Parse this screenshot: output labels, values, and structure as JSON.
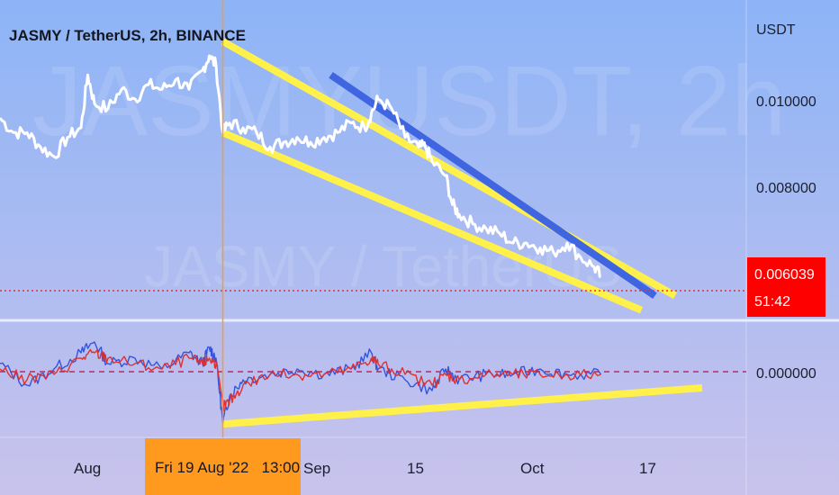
{
  "header": {
    "title": "JASMY / TetherUS, 2h, BINANCE"
  },
  "watermark": {
    "symbol": "JASMYUSDT, 2h",
    "name": "JASMY / TetherUS"
  },
  "price_axis": {
    "currency": "USDT",
    "ticks": [
      "0.010000",
      "0.008000"
    ]
  },
  "last_price": {
    "value": "0.006039",
    "countdown": "51:42",
    "color": "#ff0000"
  },
  "oscillator_axis": {
    "ticks": [
      "0.000000"
    ]
  },
  "time_axis": {
    "ticks": [
      "Aug",
      "Sep",
      "15",
      "Oct",
      "17"
    ],
    "crosshair_label": "Fri 19 Aug '22   13:00"
  },
  "colors": {
    "background_top": "#8db4f7",
    "background_bottom": "#c9c3ec",
    "price_line": "#ffffff",
    "trendline": "#fff04a",
    "blue_trendline": "#3f66e0",
    "crosshair": "#ff9a1f",
    "osc_fast": "#3355dd",
    "osc_slow": "#e03030"
  },
  "chart_data": [
    {
      "type": "line",
      "title": "JASMY / TetherUS, 2h, BINANCE",
      "ylabel": "USDT",
      "ylim": [
        0.0054,
        0.0114
      ],
      "x_index_range": [
        0,
        100
      ],
      "x_ticks": [
        {
          "label": "Aug",
          "x": 14
        },
        {
          "label": "Sep",
          "x": 47
        },
        {
          "label": "15",
          "x": 62
        },
        {
          "label": "Oct",
          "x": 79
        },
        {
          "label": "17",
          "x": 96
        }
      ],
      "crosshair": {
        "x": 33,
        "label": "Fri 19 Aug '22   13:00"
      },
      "series": [
        {
          "x": [
            0,
            2,
            4,
            6,
            8,
            10,
            12,
            13,
            14,
            16,
            18,
            20,
            22,
            24,
            26,
            28,
            30,
            31,
            32,
            33,
            34,
            36,
            38,
            40,
            42,
            44,
            46,
            48,
            50,
            52,
            54,
            55,
            56,
            58,
            60,
            62,
            63,
            64,
            66,
            67,
            68,
            70,
            72,
            74,
            76,
            78,
            80,
            82,
            84,
            86,
            88,
            89
          ],
          "values": [
            0.0095,
            0.0092,
            0.0092,
            0.0089,
            0.0087,
            0.0091,
            0.0093,
            0.0104,
            0.0098,
            0.0097,
            0.0101,
            0.0099,
            0.0102,
            0.0101,
            0.0103,
            0.0101,
            0.0105,
            0.0108,
            0.0106,
            0.0092,
            0.0094,
            0.0093,
            0.0092,
            0.0089,
            0.009,
            0.0091,
            0.009,
            0.0091,
            0.0092,
            0.0094,
            0.0093,
            0.0096,
            0.0099,
            0.0097,
            0.0091,
            0.0089,
            0.0089,
            0.0086,
            0.0083,
            0.0077,
            0.0075,
            0.0073,
            0.0072,
            0.0071,
            0.0069,
            0.0069,
            0.0068,
            0.0067,
            0.0069,
            0.0066,
            0.0064,
            0.0062
          ]
        }
      ],
      "trendlines": [
        {
          "color": "yellow",
          "x": [
            33,
            100
          ],
          "values": [
            0.0111,
            0.0058
          ]
        },
        {
          "color": "yellow",
          "x": [
            33,
            95
          ],
          "values": [
            0.0092,
            0.0055
          ]
        },
        {
          "color": "blue",
          "x": [
            49,
            97
          ],
          "values": [
            0.0104,
            0.0058
          ]
        }
      ]
    },
    {
      "type": "line",
      "title": "",
      "ylim": [
        -0.0011,
        0.0009
      ],
      "zero_line": 0.0,
      "x_index_range": [
        0,
        100
      ],
      "series": [
        {
          "color": "blue",
          "x": [
            0,
            4,
            8,
            12,
            14,
            16,
            20,
            24,
            28,
            30,
            31,
            32,
            33,
            34,
            36,
            40,
            44,
            48,
            52,
            55,
            56,
            60,
            64,
            66,
            68,
            72,
            76,
            80,
            84,
            89
          ],
          "values": [
            0.0002,
            -0.0002,
            0.0001,
            0.0004,
            0.0006,
            0.0002,
            0.0003,
            0.0001,
            0.0004,
            0.0002,
            0.0005,
            0.0003,
            -0.0009,
            -0.0004,
            -0.0001,
            0.0,
            0.0001,
            0.0,
            0.0001,
            0.0004,
            0.0001,
            -0.0001,
            -0.0003,
            0.0001,
            -0.0001,
            0.0,
            0.0,
            0.0001,
            0.0,
            0.0
          ]
        },
        {
          "color": "red",
          "x": [
            0,
            4,
            8,
            12,
            14,
            16,
            20,
            24,
            28,
            30,
            31,
            32,
            33,
            34,
            36,
            40,
            44,
            48,
            52,
            55,
            56,
            60,
            64,
            66,
            68,
            72,
            76,
            80,
            84,
            89
          ],
          "values": [
            0.0001,
            -0.0001,
            0.0,
            0.0003,
            0.0004,
            0.0003,
            0.0002,
            0.0001,
            0.0003,
            0.0002,
            0.0003,
            0.0002,
            -0.0006,
            -0.0005,
            -0.0002,
            0.0,
            0.0,
            0.0,
            0.0001,
            0.0003,
            0.0002,
            0.0,
            -0.0002,
            0.0,
            -0.0001,
            0.0,
            0.0,
            0.0,
            0.0,
            0.0
          ]
        }
      ],
      "trendlines": [
        {
          "color": "yellow",
          "x": [
            33,
            104
          ],
          "values": [
            -0.00092,
            -0.00025
          ]
        }
      ]
    }
  ]
}
